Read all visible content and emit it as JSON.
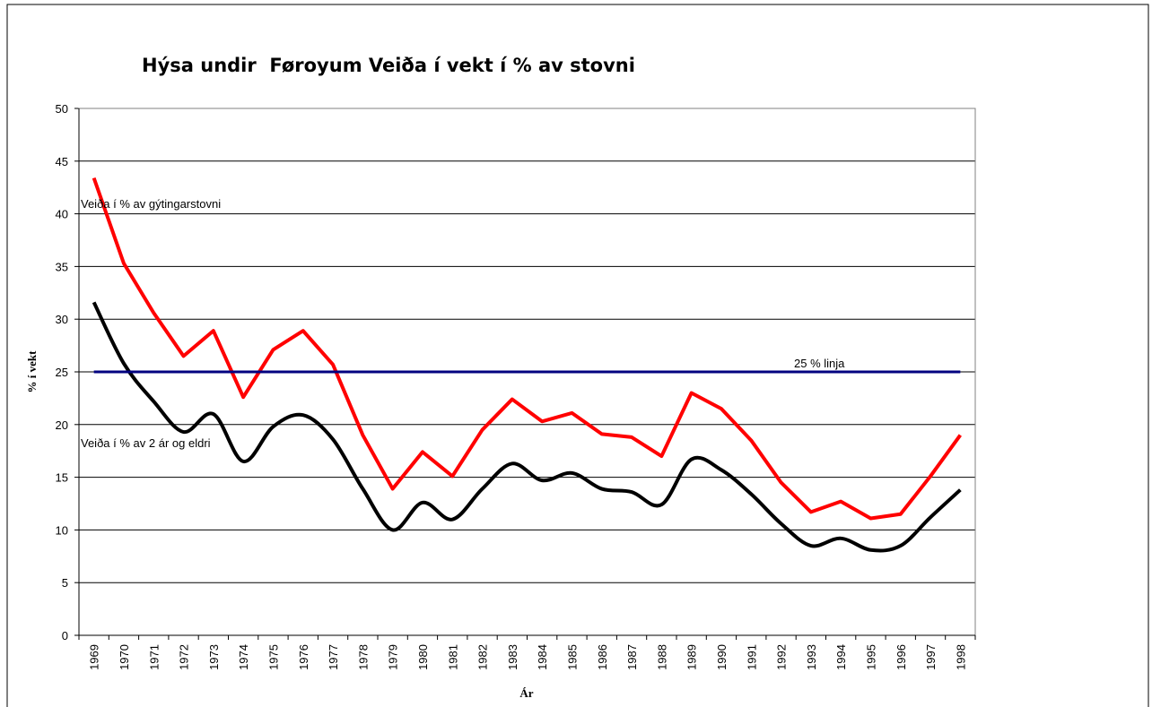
{
  "chart_data": {
    "type": "line",
    "title": "Hýsa undir  Føroyum Veiða í vekt í % av stovni",
    "xlabel": "Ár",
    "ylabel": "% í vekt",
    "categories": [
      "1969",
      "1970",
      "1971",
      "1972",
      "1973",
      "1974",
      "1975",
      "1976",
      "1977",
      "1978",
      "1979",
      "1980",
      "1981",
      "1982",
      "1983",
      "1984",
      "1985",
      "1986",
      "1987",
      "1988",
      "1989",
      "1990",
      "1991",
      "1992",
      "1993",
      "1994",
      "1995",
      "1996",
      "1997",
      "1998"
    ],
    "series": [
      {
        "name": "Veiða í % av gýtingarstovni",
        "color": "#ff0000",
        "values": [
          43.4,
          35.3,
          30.6,
          26.5,
          28.9,
          22.6,
          27.1,
          28.9,
          25.7,
          19.0,
          13.9,
          17.4,
          15.1,
          19.5,
          22.4,
          20.3,
          21.1,
          19.1,
          18.8,
          17.0,
          23.0,
          21.5,
          18.5,
          14.5,
          11.7,
          12.7,
          11.1,
          11.5,
          15.1,
          19.0
        ]
      },
      {
        "name": "Veiða í % av 2 ár og eldri",
        "color": "#000000",
        "smooth": true,
        "values": [
          31.6,
          25.8,
          22.2,
          19.3,
          21.0,
          16.5,
          19.8,
          20.9,
          18.6,
          13.9,
          10.0,
          12.6,
          11.0,
          13.9,
          16.3,
          14.7,
          15.4,
          13.9,
          13.6,
          12.4,
          16.7,
          15.7,
          13.4,
          10.6,
          8.5,
          9.2,
          8.1,
          8.5,
          11.2,
          13.8
        ]
      },
      {
        "name": "25 % linja",
        "color": "#000080",
        "values": [
          25,
          25,
          25,
          25,
          25,
          25,
          25,
          25,
          25,
          25,
          25,
          25,
          25,
          25,
          25,
          25,
          25,
          25,
          25,
          25,
          25,
          25,
          25,
          25,
          25,
          25,
          25,
          25,
          25,
          25
        ]
      }
    ],
    "ylim": [
      0,
      50
    ],
    "yticks": [
      0,
      5,
      10,
      15,
      20,
      25,
      30,
      35,
      40,
      45,
      50
    ],
    "grid": true
  }
}
